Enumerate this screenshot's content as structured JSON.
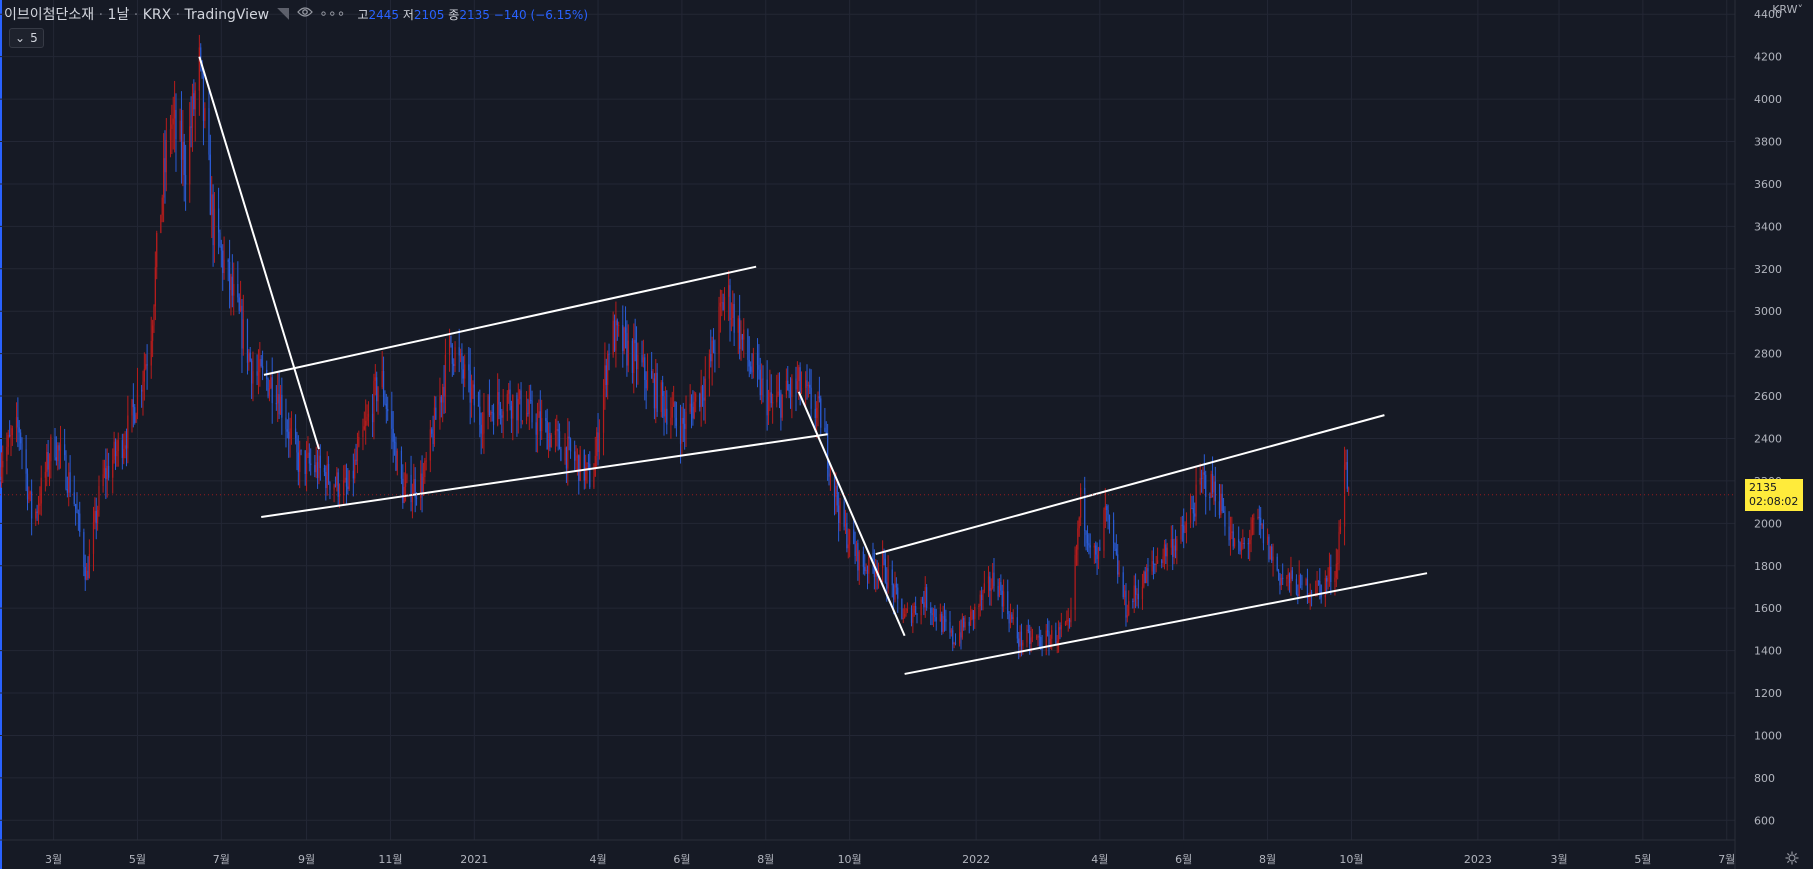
{
  "header": {
    "symbol": "이브이첨단소재",
    "interval": "1날",
    "exchange": "KRX",
    "source": "TradingView",
    "high_label": "고",
    "high": "2445",
    "low_label": "저",
    "low": "2105",
    "close_label": "종",
    "close": "2135",
    "change": "−140 (−6.15%)",
    "indicator_count": "5",
    "currency": "KRW"
  },
  "last_price": {
    "price": "2135",
    "countdown": "02:08:02"
  },
  "colors": {
    "background": "#161a25",
    "grid": "#232735",
    "up": "#b71c1c",
    "down": "#2a5cd6",
    "trendline": "#ffffff",
    "price_tag": "#ffeb3b"
  },
  "chart_data": {
    "type": "candlestick",
    "title": "이브이첨단소재 · 1날 · KRX",
    "ylabel": "KRW",
    "ylim": [
      460,
      4420
    ],
    "y_ticks": [
      600,
      800,
      1000,
      1200,
      1400,
      1600,
      1800,
      2000,
      2200,
      2400,
      2600,
      2800,
      3000,
      3200,
      3400,
      3600,
      3800,
      4000,
      4200,
      4400
    ],
    "x_range": [
      "2020-01-22",
      "2023-07-07"
    ],
    "x_ticks": [
      {
        "date": "2020-03-01",
        "label": "3월"
      },
      {
        "date": "2020-05-01",
        "label": "5월"
      },
      {
        "date": "2020-07-01",
        "label": "7월"
      },
      {
        "date": "2020-09-01",
        "label": "9월"
      },
      {
        "date": "2020-11-01",
        "label": "11월"
      },
      {
        "date": "2021-01-01",
        "label": "2021"
      },
      {
        "date": "2021-04-01",
        "label": "4월"
      },
      {
        "date": "2021-06-01",
        "label": "6월"
      },
      {
        "date": "2021-08-01",
        "label": "8월"
      },
      {
        "date": "2021-10-01",
        "label": "10월"
      },
      {
        "date": "2022-01-01",
        "label": "2022"
      },
      {
        "date": "2022-04-01",
        "label": "4월"
      },
      {
        "date": "2022-06-01",
        "label": "6월"
      },
      {
        "date": "2022-08-01",
        "label": "8월"
      },
      {
        "date": "2022-10-01",
        "label": "10월"
      },
      {
        "date": "2023-01-01",
        "label": "2023"
      },
      {
        "date": "2023-03-01",
        "label": "3월"
      },
      {
        "date": "2023-05-01",
        "label": "5월"
      },
      {
        "date": "2023-07-01",
        "label": "7월"
      }
    ],
    "price_path": [
      [
        "2020-01-22",
        2300
      ],
      [
        "2020-02-05",
        2450
      ],
      [
        "2020-02-15",
        2000
      ],
      [
        "2020-03-01",
        2400
      ],
      [
        "2020-03-15",
        2150
      ],
      [
        "2020-03-25",
        1750
      ],
      [
        "2020-04-05",
        2200
      ],
      [
        "2020-04-25",
        2450
      ],
      [
        "2020-05-10",
        2850
      ],
      [
        "2020-05-18",
        3500
      ],
      [
        "2020-05-25",
        3900
      ],
      [
        "2020-06-05",
        3700
      ],
      [
        "2020-06-15",
        4150
      ],
      [
        "2020-06-25",
        3400
      ],
      [
        "2020-07-10",
        3050
      ],
      [
        "2020-07-25",
        2700
      ],
      [
        "2020-08-10",
        2650
      ],
      [
        "2020-08-25",
        2300
      ],
      [
        "2020-09-10",
        2250
      ],
      [
        "2020-10-01",
        2150
      ],
      [
        "2020-10-25",
        2700
      ],
      [
        "2020-11-10",
        2150
      ],
      [
        "2020-11-25",
        2200
      ],
      [
        "2020-12-15",
        2850
      ],
      [
        "2021-01-05",
        2500
      ],
      [
        "2021-01-25",
        2600
      ],
      [
        "2021-02-20",
        2450
      ],
      [
        "2021-03-15",
        2300
      ],
      [
        "2021-03-28",
        2200
      ],
      [
        "2021-04-10",
        2900
      ],
      [
        "2021-04-25",
        2800
      ],
      [
        "2021-05-15",
        2600
      ],
      [
        "2021-06-01",
        2450
      ],
      [
        "2021-06-20",
        2700
      ],
      [
        "2021-07-03",
        3100
      ],
      [
        "2021-07-20",
        2750
      ],
      [
        "2021-08-05",
        2550
      ],
      [
        "2021-08-25",
        2650
      ],
      [
        "2021-09-10",
        2500
      ],
      [
        "2021-09-25",
        2000
      ],
      [
        "2021-10-10",
        1800
      ],
      [
        "2021-10-25",
        1800
      ],
      [
        "2021-11-10",
        1550
      ],
      [
        "2021-11-25",
        1650
      ],
      [
        "2021-12-15",
        1450
      ],
      [
        "2021-12-28",
        1550
      ],
      [
        "2022-01-15",
        1750
      ],
      [
        "2022-02-01",
        1450
      ],
      [
        "2022-02-20",
        1450
      ],
      [
        "2022-03-10",
        1500
      ],
      [
        "2022-03-18",
        2100
      ],
      [
        "2022-03-30",
        1800
      ],
      [
        "2022-04-05",
        2050
      ],
      [
        "2022-04-20",
        1600
      ],
      [
        "2022-05-15",
        1850
      ],
      [
        "2022-06-01",
        1950
      ],
      [
        "2022-06-15",
        2200
      ],
      [
        "2022-06-25",
        2150
      ],
      [
        "2022-07-10",
        1850
      ],
      [
        "2022-07-25",
        2000
      ],
      [
        "2022-08-10",
        1750
      ],
      [
        "2022-08-25",
        1700
      ],
      [
        "2022-09-10",
        1700
      ],
      [
        "2022-09-20",
        1800
      ],
      [
        "2022-09-27",
        2300
      ],
      [
        "2022-09-29",
        2135
      ]
    ],
    "trendlines": [
      {
        "from": [
          "2020-06-15",
          4200
        ],
        "to": [
          "2020-09-10",
          2350
        ]
      },
      {
        "from": [
          "2020-08-01",
          2700
        ],
        "to": [
          "2021-07-25",
          3210
        ]
      },
      {
        "from": [
          "2020-07-30",
          2030
        ],
        "to": [
          "2021-09-15",
          2420
        ]
      },
      {
        "from": [
          "2021-08-25",
          2620
        ],
        "to": [
          "2021-11-10",
          1470
        ]
      },
      {
        "from": [
          "2021-10-20",
          1855
        ],
        "to": [
          "2022-10-25",
          2510
        ]
      },
      {
        "from": [
          "2021-11-10",
          1290
        ],
        "to": [
          "2022-11-25",
          1765
        ]
      }
    ],
    "last_price": 2135
  }
}
